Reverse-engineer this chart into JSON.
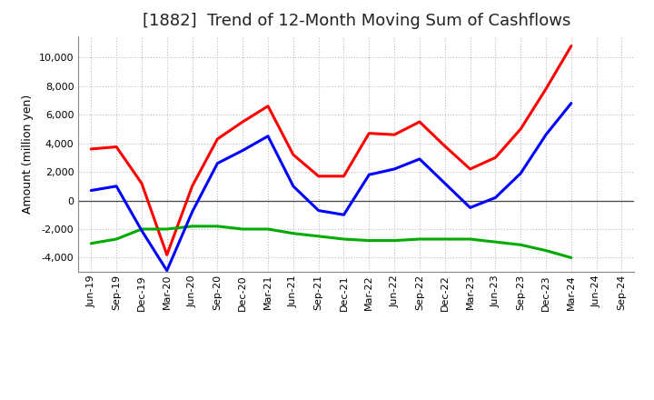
{
  "title": "[1882]  Trend of 12-Month Moving Sum of Cashflows",
  "ylabel": "Amount (million yen)",
  "x_labels": [
    "Jun-19",
    "Sep-19",
    "Dec-19",
    "Mar-20",
    "Jun-20",
    "Sep-20",
    "Dec-20",
    "Mar-21",
    "Jun-21",
    "Sep-21",
    "Dec-21",
    "Mar-22",
    "Jun-22",
    "Sep-22",
    "Dec-22",
    "Mar-23",
    "Jun-23",
    "Sep-23",
    "Dec-23",
    "Mar-24",
    "Jun-24",
    "Sep-24"
  ],
  "operating": [
    3600,
    3750,
    1200,
    -3800,
    1000,
    4300,
    5500,
    6600,
    3200,
    1700,
    1700,
    4700,
    4600,
    5500,
    3800,
    2200,
    3000,
    5000,
    7800,
    10800,
    null,
    null
  ],
  "investing": [
    -3000,
    -2700,
    -2000,
    -2000,
    -1800,
    -1800,
    -2000,
    -2000,
    -2300,
    -2500,
    -2700,
    -2800,
    -2800,
    -2700,
    -2700,
    -2700,
    -2900,
    -3100,
    -3500,
    -4000,
    null,
    null
  ],
  "free": [
    700,
    1000,
    -2100,
    -4900,
    -800,
    2600,
    3500,
    4500,
    1000,
    -700,
    -1000,
    1800,
    2200,
    2900,
    1200,
    -500,
    200,
    1900,
    4600,
    6800,
    null,
    null
  ],
  "ylim": [
    -5000,
    11500
  ],
  "yticks": [
    -4000,
    -2000,
    0,
    2000,
    4000,
    6000,
    8000,
    10000
  ],
  "operating_color": "#ff0000",
  "investing_color": "#00aa00",
  "free_color": "#0000ff",
  "bg_color": "#ffffff",
  "plot_bg_color": "#ffffff",
  "grid_color": "#bbbbbb",
  "line_width": 2.2,
  "title_fontsize": 13,
  "tick_fontsize": 8,
  "ylabel_fontsize": 9,
  "legend_fontsize": 9
}
